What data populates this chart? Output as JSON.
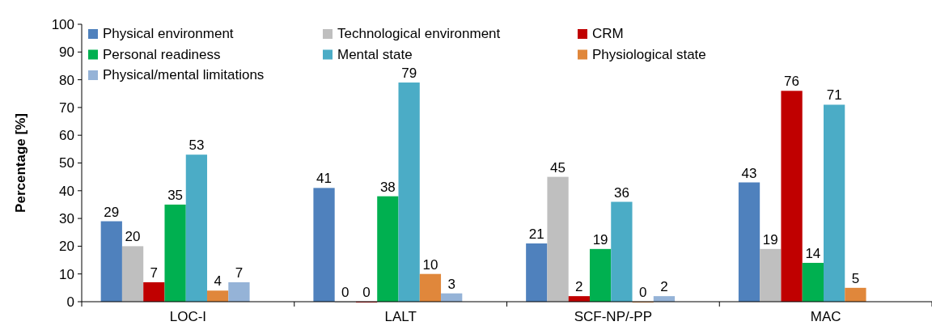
{
  "chart_data": {
    "type": "bar",
    "ylabel": "Percentage [%]",
    "categories": [
      "LOC-I",
      "LALT",
      "SCF-NP/-PP",
      "MAC"
    ],
    "series": [
      {
        "name": "Physical environment",
        "color": "#4f81bd",
        "values": [
          29,
          41,
          21,
          43
        ]
      },
      {
        "name": "Technological environment",
        "color": "#bfbfbf",
        "values": [
          20,
          0,
          45,
          19
        ]
      },
      {
        "name": "CRM",
        "color": "#c00000",
        "values": [
          7,
          0,
          2,
          76
        ]
      },
      {
        "name": "Personal readiness",
        "color": "#00b050",
        "values": [
          35,
          38,
          19,
          14
        ]
      },
      {
        "name": "Mental state",
        "color": "#4bacc6",
        "values": [
          53,
          79,
          36,
          71
        ]
      },
      {
        "name": "Physiological state",
        "color": "#e0873b",
        "values": [
          4,
          10,
          0,
          5
        ]
      },
      {
        "name": "Physical/mental limitations",
        "color": "#95b3d7",
        "values": [
          7,
          3,
          2,
          null
        ]
      }
    ],
    "ylim": [
      0,
      100
    ],
    "yticks": [
      0,
      10,
      20,
      30,
      40,
      50,
      60,
      70,
      80,
      90,
      100
    ],
    "data_labels": true,
    "legend": "top left",
    "grid": false
  }
}
